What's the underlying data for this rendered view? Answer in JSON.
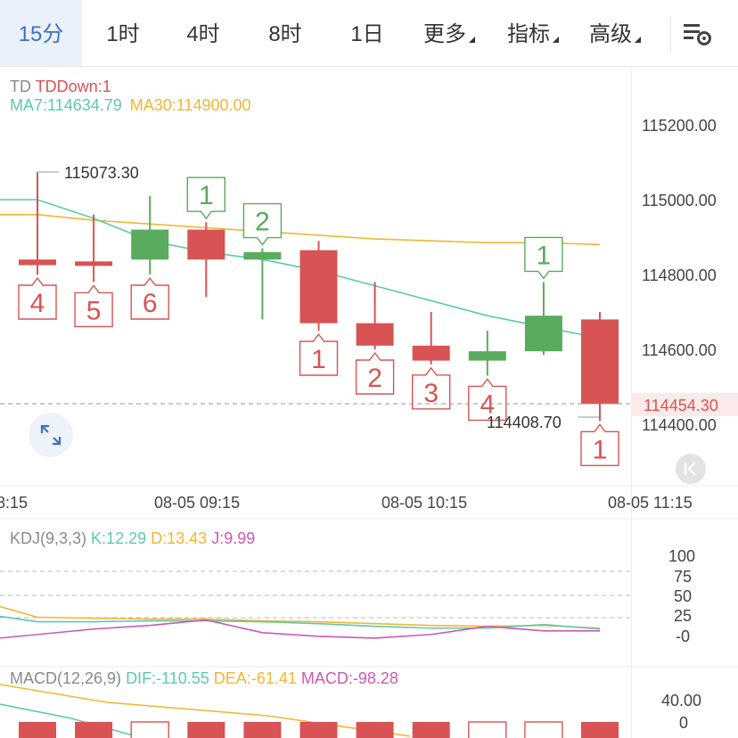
{
  "tabs": [
    {
      "label": "15分",
      "active": true
    },
    {
      "label": "1时"
    },
    {
      "label": "4时"
    },
    {
      "label": "8时"
    },
    {
      "label": "1日"
    },
    {
      "label": "更多",
      "dropdown": true
    },
    {
      "label": "指标",
      "dropdown": true
    },
    {
      "label": "高级",
      "dropdown": true
    }
  ],
  "settings_icon": "chart-settings-icon",
  "main_chart": {
    "legend_td_name": "TD",
    "legend_td_value": "TDDown:1",
    "legend_ma7": "MA7:114634.79",
    "legend_ma30": "MA30:114900.00",
    "price_ticks": [
      "115200.00",
      "115000.00",
      "114800.00",
      "114600.00",
      "114400.00"
    ],
    "current_price": "114454.30",
    "high_marker": "115073.30",
    "low_marker": "114408.70",
    "time_labels": [
      "8:15",
      "08-05 09:15",
      "08-05 10:15",
      "08-05 11:15"
    ],
    "candles": [
      {
        "o": 114840,
        "h": 115073.3,
        "l": 114800,
        "c": 114825,
        "td": "4",
        "td_color": "red",
        "td_pos": "below"
      },
      {
        "o": 114835,
        "h": 114960,
        "l": 114780,
        "c": 114830,
        "td": "5",
        "td_color": "red",
        "td_pos": "below"
      },
      {
        "o": 114840,
        "h": 115010,
        "l": 114800,
        "c": 114920,
        "td": "6",
        "td_color": "red",
        "td_pos": "below"
      },
      {
        "o": 114920,
        "h": 114940,
        "l": 114740,
        "c": 114840,
        "td": "1",
        "td_color": "green",
        "td_pos": "above"
      },
      {
        "o": 114840,
        "h": 114870,
        "l": 114680,
        "c": 114860,
        "td": "2",
        "td_color": "green",
        "td_pos": "above"
      },
      {
        "o": 114865,
        "h": 114890,
        "l": 114650,
        "c": 114670,
        "td": "1",
        "td_color": "red",
        "td_pos": "below"
      },
      {
        "o": 114670,
        "h": 114780,
        "l": 114600,
        "c": 114610,
        "td": "2",
        "td_color": "red",
        "td_pos": "below"
      },
      {
        "o": 114610,
        "h": 114700,
        "l": 114560,
        "c": 114570,
        "td": "3",
        "td_color": "red",
        "td_pos": "below"
      },
      {
        "o": 114570,
        "h": 114650,
        "l": 114530,
        "c": 114595,
        "td": "4",
        "td_color": "red",
        "td_pos": "below"
      },
      {
        "o": 114595,
        "h": 114780,
        "l": 114585,
        "c": 114690,
        "td": "1",
        "td_color": "green",
        "td_pos": "above"
      },
      {
        "o": 114680,
        "h": 114700,
        "l": 114408.7,
        "c": 114454.3,
        "td": "1",
        "td_color": "red",
        "td_pos": "below"
      }
    ],
    "ma7": [
      115000,
      114950,
      114890,
      114860,
      114840,
      114810,
      114770,
      114730,
      114690,
      114660,
      114630
    ],
    "ma30": [
      114960,
      114945,
      114935,
      114925,
      114915,
      114905,
      114895,
      114890,
      114885,
      114885,
      114880
    ],
    "ylim": [
      114300,
      115300
    ],
    "colors": {
      "up": "#5aab5e",
      "down": "#d85454",
      "ma7": "#5cc9b0",
      "ma30": "#f2b632",
      "accent": "#3a72c9"
    }
  },
  "kdj": {
    "legend_name": "KDJ(9,3,3)",
    "legend_k": "K:12.29",
    "legend_d": "D:13.43",
    "legend_j": "J:9.99",
    "ticks": [
      "100",
      "75",
      "50",
      "25",
      "-0"
    ],
    "k": [
      20,
      20,
      21,
      21,
      20,
      18,
      15,
      13,
      13,
      17,
      12
    ],
    "d": [
      25,
      24,
      23,
      23,
      21,
      20,
      18,
      16,
      15,
      16,
      13
    ],
    "j": [
      6,
      12,
      16,
      22,
      8,
      4,
      2,
      6,
      15,
      10,
      10
    ],
    "colors": {
      "k": "#5cc9b0",
      "d": "#f2b632",
      "j": "#c85ab5"
    }
  },
  "macd": {
    "legend_name": "MACD(12,26,9)",
    "legend_dif": "DIF:-110.55",
    "legend_dea": "DEA:-61.41",
    "legend_macd": "MACD:-98.28",
    "ticks": [
      "40.00",
      "0"
    ],
    "bar_kinds": [
      "solid",
      "solid",
      "hollow",
      "solid",
      "solid",
      "solid",
      "solid",
      "solid",
      "hollow",
      "hollow",
      "solid"
    ],
    "colors": {
      "dif": "#5cc9b0",
      "dea": "#f2b632",
      "macd": "#c85ab5",
      "bar": "#d85454"
    }
  }
}
